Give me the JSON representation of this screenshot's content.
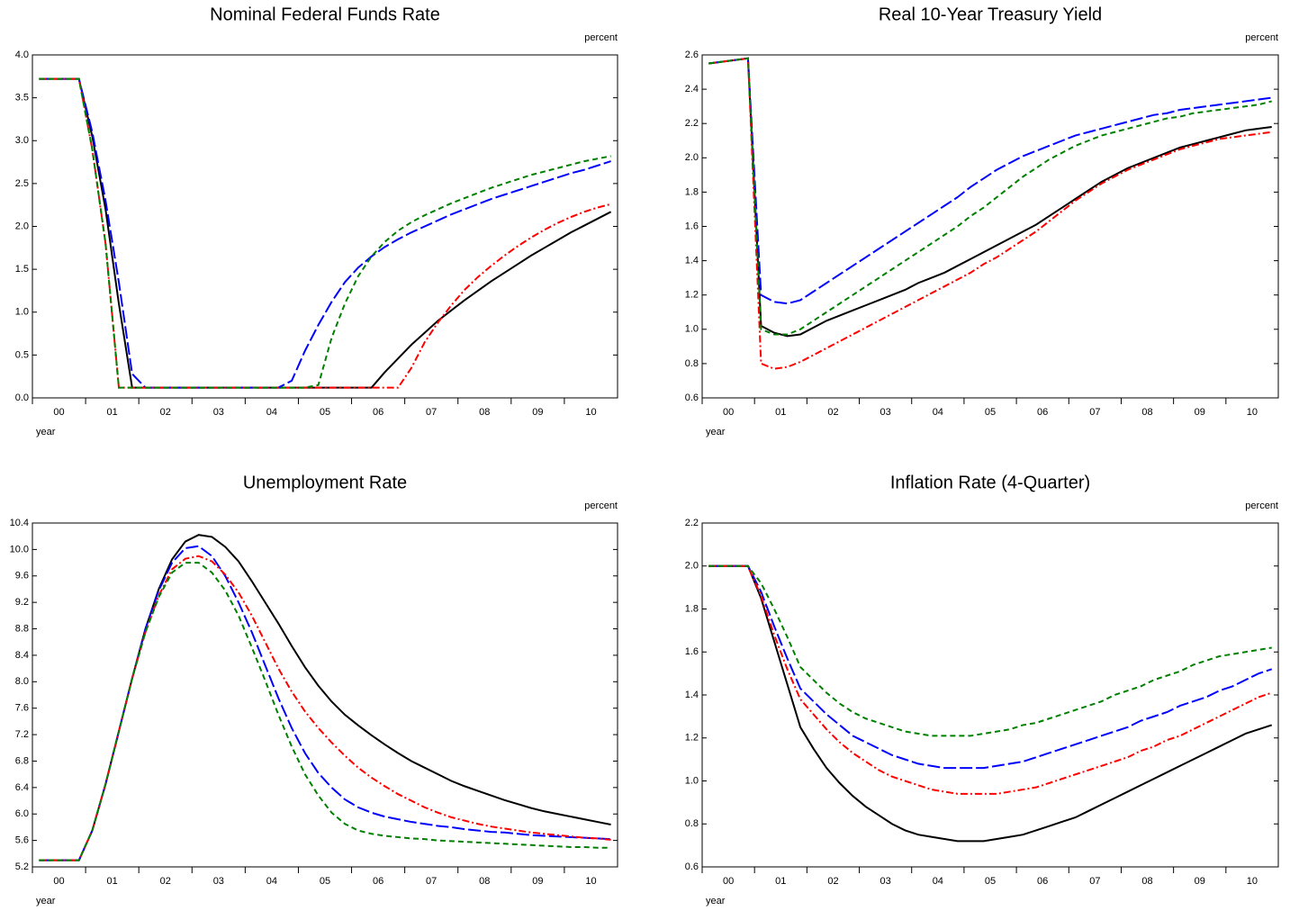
{
  "chart_data": [
    {
      "type": "line",
      "title": "Nominal Federal Funds Rate",
      "unit": "percent",
      "x_label": "year",
      "categories": [
        null,
        "00",
        null,
        null,
        null,
        "01",
        null,
        null,
        null,
        "02",
        null,
        null,
        null,
        "03",
        null,
        null,
        null,
        "04",
        null,
        null,
        null,
        "05",
        null,
        null,
        null,
        "06",
        null,
        null,
        null,
        "07",
        null,
        null,
        null,
        "08",
        null,
        null,
        null,
        "09",
        null,
        null,
        null,
        "10",
        null,
        null
      ],
      "ylim": [
        0.0,
        4.0
      ],
      "yticks": [
        {
          "value": 0,
          "label": "0.0"
        },
        0.5,
        {
          "value": 1,
          "label": "1.0"
        },
        1.5,
        {
          "value": 2,
          "label": "2.0"
        },
        2.5,
        {
          "value": 3,
          "label": "3.0"
        },
        3.5,
        {
          "value": 4,
          "label": "4.0"
        }
      ],
      "series": [
        {
          "color": "#000000",
          "style": "solid",
          "values": [
            3.72,
            3.72,
            3.72,
            3.72,
            3.05,
            2.2,
            1.1,
            0.12,
            0.12,
            0.12,
            0.12,
            0.12,
            0.12,
            0.12,
            0.12,
            0.12,
            0.12,
            0.12,
            0.12,
            0.12,
            0.12,
            0.12,
            0.12,
            0.12,
            0.12,
            0.12,
            0.3,
            0.46,
            0.62,
            0.76,
            0.9,
            1.02,
            1.14,
            1.25,
            1.36,
            1.46,
            1.56,
            1.66,
            1.75,
            1.84,
            1.93,
            2.01,
            2.09,
            2.17
          ]
        },
        {
          "color": "#0000ff",
          "style": "long-dash",
          "values": [
            3.72,
            3.72,
            3.72,
            3.72,
            3.1,
            2.3,
            1.35,
            0.28,
            0.12,
            0.12,
            0.12,
            0.12,
            0.12,
            0.12,
            0.12,
            0.12,
            0.12,
            0.12,
            0.12,
            0.2,
            0.55,
            0.85,
            1.12,
            1.35,
            1.52,
            1.65,
            1.76,
            1.85,
            1.93,
            2.0,
            2.07,
            2.14,
            2.2,
            2.26,
            2.32,
            2.37,
            2.42,
            2.47,
            2.52,
            2.57,
            2.62,
            2.66,
            2.71,
            2.76
          ]
        },
        {
          "color": "#ff0000",
          "style": "dash-dot",
          "values": [
            3.72,
            3.72,
            3.72,
            3.72,
            2.9,
            1.8,
            0.12,
            0.12,
            0.12,
            0.12,
            0.12,
            0.12,
            0.12,
            0.12,
            0.12,
            0.12,
            0.12,
            0.12,
            0.12,
            0.12,
            0.12,
            0.12,
            0.12,
            0.12,
            0.12,
            0.12,
            0.12,
            0.12,
            0.35,
            0.65,
            0.88,
            1.08,
            1.26,
            1.41,
            1.54,
            1.66,
            1.77,
            1.87,
            1.96,
            2.04,
            2.11,
            2.17,
            2.22,
            2.26
          ]
        },
        {
          "color": "#008000",
          "style": "dash",
          "values": [
            3.72,
            3.72,
            3.72,
            3.72,
            2.9,
            1.8,
            0.12,
            0.12,
            0.12,
            0.12,
            0.12,
            0.12,
            0.12,
            0.12,
            0.12,
            0.12,
            0.12,
            0.12,
            0.12,
            0.12,
            0.12,
            0.15,
            0.7,
            1.1,
            1.42,
            1.65,
            1.82,
            1.95,
            2.05,
            2.13,
            2.2,
            2.27,
            2.33,
            2.39,
            2.45,
            2.5,
            2.55,
            2.6,
            2.64,
            2.68,
            2.72,
            2.76,
            2.79,
            2.82
          ]
        }
      ]
    },
    {
      "type": "line",
      "title": "Real 10-Year Treasury Yield",
      "unit": "percent",
      "x_label": "year",
      "categories": [
        null,
        "00",
        null,
        null,
        null,
        "01",
        null,
        null,
        null,
        "02",
        null,
        null,
        null,
        "03",
        null,
        null,
        null,
        "04",
        null,
        null,
        null,
        "05",
        null,
        null,
        null,
        "06",
        null,
        null,
        null,
        "07",
        null,
        null,
        null,
        "08",
        null,
        null,
        null,
        "09",
        null,
        null,
        null,
        "10",
        null,
        null
      ],
      "ylim": [
        0.6,
        2.6
      ],
      "yticks": [
        0.6,
        0.8,
        {
          "value": 1,
          "label": "1.0"
        },
        1.2,
        1.4,
        1.6,
        1.8,
        {
          "value": 2,
          "label": "2.0"
        },
        2.2,
        2.4,
        2.6
      ],
      "series": [
        {
          "color": "#000000",
          "style": "solid",
          "values": [
            2.55,
            2.56,
            2.57,
            2.58,
            1.02,
            0.98,
            0.96,
            0.97,
            1.01,
            1.05,
            1.08,
            1.11,
            1.14,
            1.17,
            1.2,
            1.23,
            1.27,
            1.3,
            1.33,
            1.37,
            1.41,
            1.45,
            1.49,
            1.53,
            1.57,
            1.61,
            1.66,
            1.71,
            1.76,
            1.81,
            1.86,
            1.9,
            1.94,
            1.97,
            2.0,
            2.03,
            2.06,
            2.08,
            2.1,
            2.12,
            2.14,
            2.16,
            2.17,
            2.18
          ]
        },
        {
          "color": "#0000ff",
          "style": "long-dash",
          "values": [
            2.55,
            2.56,
            2.57,
            2.58,
            1.2,
            1.16,
            1.15,
            1.17,
            1.22,
            1.27,
            1.32,
            1.37,
            1.42,
            1.47,
            1.52,
            1.57,
            1.62,
            1.67,
            1.72,
            1.77,
            1.83,
            1.88,
            1.93,
            1.97,
            2.01,
            2.04,
            2.07,
            2.1,
            2.13,
            2.15,
            2.17,
            2.19,
            2.21,
            2.23,
            2.25,
            2.26,
            2.28,
            2.29,
            2.3,
            2.31,
            2.32,
            2.33,
            2.34,
            2.35
          ]
        },
        {
          "color": "#ff0000",
          "style": "dash-dot",
          "values": [
            2.55,
            2.56,
            2.57,
            2.58,
            0.8,
            0.77,
            0.78,
            0.81,
            0.85,
            0.89,
            0.93,
            0.97,
            1.01,
            1.05,
            1.09,
            1.13,
            1.17,
            1.21,
            1.25,
            1.29,
            1.33,
            1.38,
            1.42,
            1.47,
            1.52,
            1.57,
            1.63,
            1.69,
            1.75,
            1.8,
            1.85,
            1.89,
            1.93,
            1.96,
            1.99,
            2.02,
            2.05,
            2.07,
            2.09,
            2.11,
            2.12,
            2.13,
            2.14,
            2.15
          ]
        },
        {
          "color": "#008000",
          "style": "dash",
          "values": [
            2.55,
            2.56,
            2.57,
            2.58,
            1.0,
            0.97,
            0.97,
            1.0,
            1.05,
            1.1,
            1.15,
            1.2,
            1.25,
            1.3,
            1.35,
            1.4,
            1.45,
            1.5,
            1.55,
            1.6,
            1.66,
            1.71,
            1.77,
            1.83,
            1.89,
            1.94,
            1.99,
            2.03,
            2.07,
            2.1,
            2.13,
            2.15,
            2.17,
            2.19,
            2.21,
            2.23,
            2.24,
            2.26,
            2.27,
            2.28,
            2.29,
            2.3,
            2.31,
            2.33
          ]
        }
      ]
    },
    {
      "type": "line",
      "title": "Unemployment Rate",
      "unit": "percent",
      "x_label": "year",
      "categories": [
        null,
        "00",
        null,
        null,
        null,
        "01",
        null,
        null,
        null,
        "02",
        null,
        null,
        null,
        "03",
        null,
        null,
        null,
        "04",
        null,
        null,
        null,
        "05",
        null,
        null,
        null,
        "06",
        null,
        null,
        null,
        "07",
        null,
        null,
        null,
        "08",
        null,
        null,
        null,
        "09",
        null,
        null,
        null,
        "10",
        null,
        null
      ],
      "ylim": [
        5.2,
        10.4
      ],
      "yticks": [
        5.2,
        5.6,
        {
          "value": 6,
          "label": "6.0"
        },
        6.4,
        6.8,
        7.2,
        7.6,
        {
          "value": 8,
          "label": "8.0"
        },
        8.4,
        8.8,
        9.2,
        9.6,
        {
          "value": 10,
          "label": "10.0"
        },
        10.4
      ],
      "series": [
        {
          "color": "#000000",
          "style": "solid",
          "values": [
            5.3,
            5.3,
            5.3,
            5.3,
            5.75,
            6.45,
            7.25,
            8.05,
            8.8,
            9.4,
            9.85,
            10.12,
            10.22,
            10.19,
            10.04,
            9.82,
            9.52,
            9.2,
            8.88,
            8.54,
            8.22,
            7.94,
            7.7,
            7.5,
            7.34,
            7.19,
            7.05,
            6.92,
            6.8,
            6.7,
            6.6,
            6.5,
            6.42,
            6.35,
            6.28,
            6.21,
            6.15,
            6.09,
            6.04,
            6.0,
            5.96,
            5.92,
            5.88,
            5.84
          ]
        },
        {
          "color": "#0000ff",
          "style": "long-dash",
          "values": [
            5.3,
            5.3,
            5.3,
            5.3,
            5.75,
            6.45,
            7.25,
            8.05,
            8.8,
            9.38,
            9.8,
            10.02,
            10.05,
            9.9,
            9.6,
            9.2,
            8.75,
            8.25,
            7.75,
            7.3,
            6.92,
            6.62,
            6.4,
            6.22,
            6.1,
            6.02,
            5.96,
            5.92,
            5.88,
            5.85,
            5.82,
            5.8,
            5.77,
            5.75,
            5.73,
            5.72,
            5.7,
            5.68,
            5.67,
            5.66,
            5.65,
            5.64,
            5.63,
            5.62
          ]
        },
        {
          "color": "#ff0000",
          "style": "dash-dot",
          "values": [
            5.3,
            5.3,
            5.3,
            5.3,
            5.75,
            6.45,
            7.25,
            8.05,
            8.75,
            9.3,
            9.7,
            9.86,
            9.9,
            9.82,
            9.62,
            9.35,
            9.0,
            8.6,
            8.2,
            7.85,
            7.55,
            7.3,
            7.08,
            6.88,
            6.7,
            6.55,
            6.42,
            6.3,
            6.2,
            6.1,
            6.02,
            5.95,
            5.9,
            5.85,
            5.81,
            5.78,
            5.75,
            5.72,
            5.7,
            5.68,
            5.66,
            5.64,
            5.63,
            5.61
          ]
        },
        {
          "color": "#008000",
          "style": "dash",
          "values": [
            5.3,
            5.3,
            5.3,
            5.3,
            5.75,
            6.45,
            7.25,
            8.05,
            8.75,
            9.28,
            9.65,
            9.8,
            9.8,
            9.65,
            9.38,
            9.0,
            8.52,
            8.02,
            7.5,
            7.02,
            6.6,
            6.28,
            6.02,
            5.85,
            5.75,
            5.7,
            5.67,
            5.65,
            5.63,
            5.62,
            5.6,
            5.59,
            5.58,
            5.57,
            5.56,
            5.55,
            5.54,
            5.53,
            5.52,
            5.51,
            5.5,
            5.5,
            5.49,
            5.49
          ]
        }
      ]
    },
    {
      "type": "line",
      "title": "Inflation Rate (4-Quarter)",
      "unit": "percent",
      "x_label": "year",
      "categories": [
        null,
        "00",
        null,
        null,
        null,
        "01",
        null,
        null,
        null,
        "02",
        null,
        null,
        null,
        "03",
        null,
        null,
        null,
        "04",
        null,
        null,
        null,
        "05",
        null,
        null,
        null,
        "06",
        null,
        null,
        null,
        "07",
        null,
        null,
        null,
        "08",
        null,
        null,
        null,
        "09",
        null,
        null,
        null,
        "10",
        null,
        null
      ],
      "ylim": [
        0.6,
        2.2
      ],
      "yticks": [
        0.6,
        0.8,
        {
          "value": 1,
          "label": "1.0"
        },
        1.2,
        1.4,
        1.6,
        1.8,
        {
          "value": 2,
          "label": "2.0"
        },
        2.2
      ],
      "series": [
        {
          "color": "#000000",
          "style": "solid",
          "values": [
            2.0,
            2.0,
            2.0,
            2.0,
            1.85,
            1.65,
            1.45,
            1.25,
            1.15,
            1.06,
            0.99,
            0.93,
            0.88,
            0.84,
            0.8,
            0.77,
            0.75,
            0.74,
            0.73,
            0.72,
            0.72,
            0.72,
            0.73,
            0.74,
            0.75,
            0.77,
            0.79,
            0.81,
            0.83,
            0.86,
            0.89,
            0.92,
            0.95,
            0.98,
            1.01,
            1.04,
            1.07,
            1.1,
            1.13,
            1.16,
            1.19,
            1.22,
            1.24,
            1.26
          ]
        },
        {
          "color": "#0000ff",
          "style": "long-dash",
          "values": [
            2.0,
            2.0,
            2.0,
            2.0,
            1.88,
            1.72,
            1.57,
            1.43,
            1.37,
            1.31,
            1.26,
            1.21,
            1.18,
            1.15,
            1.12,
            1.1,
            1.08,
            1.07,
            1.06,
            1.06,
            1.06,
            1.06,
            1.07,
            1.08,
            1.09,
            1.11,
            1.13,
            1.15,
            1.17,
            1.19,
            1.21,
            1.23,
            1.25,
            1.28,
            1.3,
            1.32,
            1.35,
            1.37,
            1.39,
            1.42,
            1.44,
            1.47,
            1.5,
            1.52
          ]
        },
        {
          "color": "#ff0000",
          "style": "dash-dot",
          "values": [
            2.0,
            2.0,
            2.0,
            2.0,
            1.86,
            1.68,
            1.52,
            1.38,
            1.31,
            1.24,
            1.18,
            1.13,
            1.09,
            1.05,
            1.02,
            1.0,
            0.98,
            0.96,
            0.95,
            0.94,
            0.94,
            0.94,
            0.94,
            0.95,
            0.96,
            0.97,
            0.99,
            1.01,
            1.03,
            1.05,
            1.07,
            1.09,
            1.11,
            1.14,
            1.16,
            1.19,
            1.21,
            1.24,
            1.27,
            1.3,
            1.33,
            1.36,
            1.39,
            1.41
          ]
        },
        {
          "color": "#008000",
          "style": "dash",
          "values": [
            2.0,
            2.0,
            2.0,
            2.0,
            1.92,
            1.8,
            1.67,
            1.53,
            1.47,
            1.41,
            1.36,
            1.32,
            1.29,
            1.27,
            1.25,
            1.23,
            1.22,
            1.21,
            1.21,
            1.21,
            1.21,
            1.22,
            1.23,
            1.24,
            1.26,
            1.27,
            1.29,
            1.31,
            1.33,
            1.35,
            1.37,
            1.4,
            1.42,
            1.44,
            1.47,
            1.49,
            1.51,
            1.54,
            1.56,
            1.58,
            1.59,
            1.6,
            1.61,
            1.62
          ]
        }
      ]
    }
  ]
}
